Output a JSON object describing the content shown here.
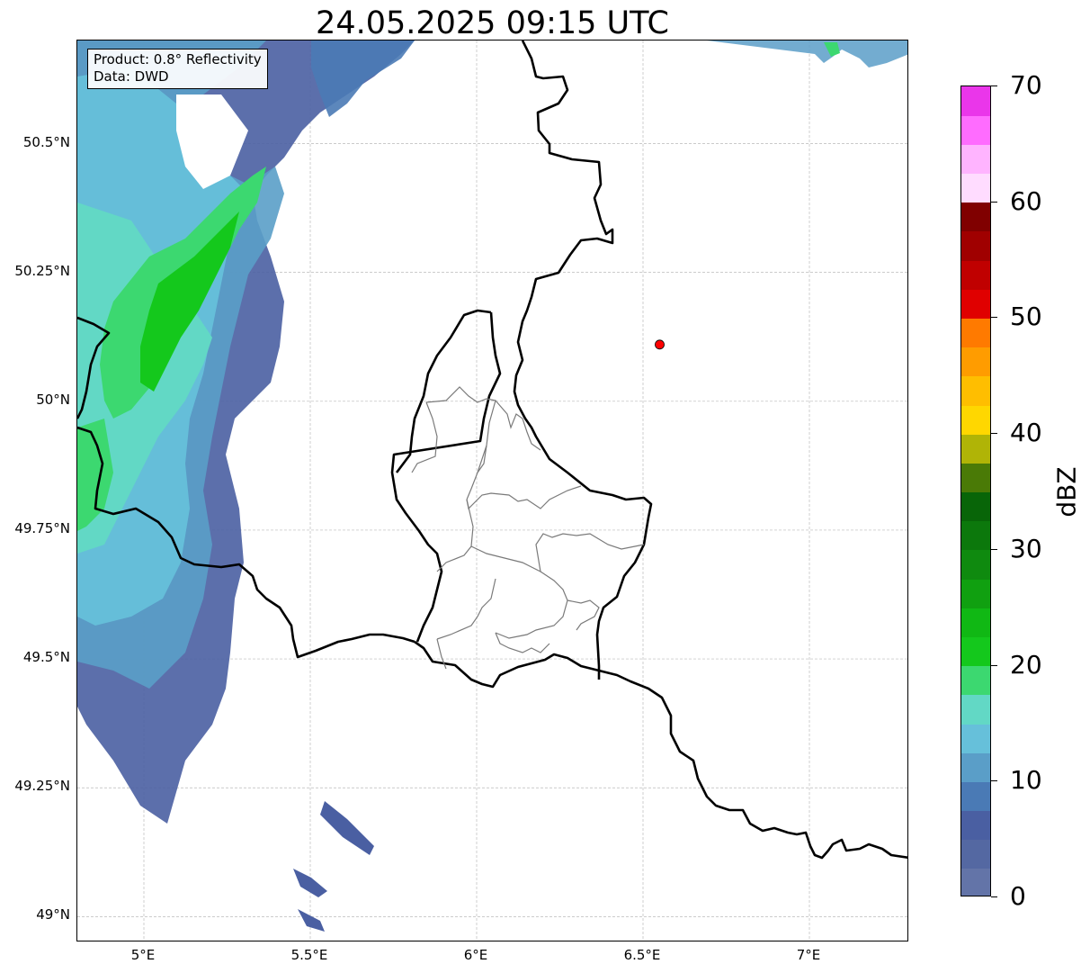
{
  "title": "24.05.2025 09:15 UTC",
  "info_box": {
    "line1": "Product: 0.8° Reflectivity",
    "line2": "Data: DWD"
  },
  "map": {
    "extent_lon": [
      4.8,
      7.3
    ],
    "extent_lat": [
      48.95,
      50.7
    ],
    "x_ticks": [
      {
        "value": 5.0,
        "label": "5°E"
      },
      {
        "value": 5.5,
        "label": "5.5°E"
      },
      {
        "value": 6.0,
        "label": "6°E"
      },
      {
        "value": 6.5,
        "label": "6.5°E"
      },
      {
        "value": 7.0,
        "label": "7°E"
      }
    ],
    "y_ticks": [
      {
        "value": 50.5,
        "label": "50.5°N"
      },
      {
        "value": 50.25,
        "label": "50.25°N"
      },
      {
        "value": 50.0,
        "label": "50°N"
      },
      {
        "value": 49.75,
        "label": "49.75°N"
      },
      {
        "value": 49.5,
        "label": "49.5°N"
      },
      {
        "value": 49.25,
        "label": "49.25°N"
      },
      {
        "value": 49.0,
        "label": "49°N"
      }
    ],
    "grid": true,
    "marker": {
      "lon": 6.55,
      "lat": 50.11,
      "color": "#ff0000"
    }
  },
  "colorbar": {
    "label": "dBZ",
    "min": 0,
    "max": 70,
    "ticks": [
      {
        "value": 0,
        "label": "0"
      },
      {
        "value": 10,
        "label": "10"
      },
      {
        "value": 20,
        "label": "20"
      },
      {
        "value": 30,
        "label": "30"
      },
      {
        "value": 40,
        "label": "40"
      },
      {
        "value": 50,
        "label": "50"
      },
      {
        "value": 60,
        "label": "60"
      },
      {
        "value": 70,
        "label": "70"
      }
    ],
    "colors": [
      "#6374a8",
      "#5468a2",
      "#4a5fa2",
      "#4a7ab5",
      "#5a9ec8",
      "#66c0da",
      "#62d8c5",
      "#3cd870",
      "#14c81c",
      "#10b814",
      "#10a010",
      "#0f8a0f",
      "#0c780c",
      "#086508",
      "#4a7a06",
      "#b0b406",
      "#ffd700",
      "#ffbe00",
      "#ff9c00",
      "#ff7a00",
      "#e00000",
      "#c00000",
      "#a00000",
      "#800000",
      "#ffdcff",
      "#ffb4ff",
      "#ff6cff",
      "#ea36ea"
    ]
  }
}
